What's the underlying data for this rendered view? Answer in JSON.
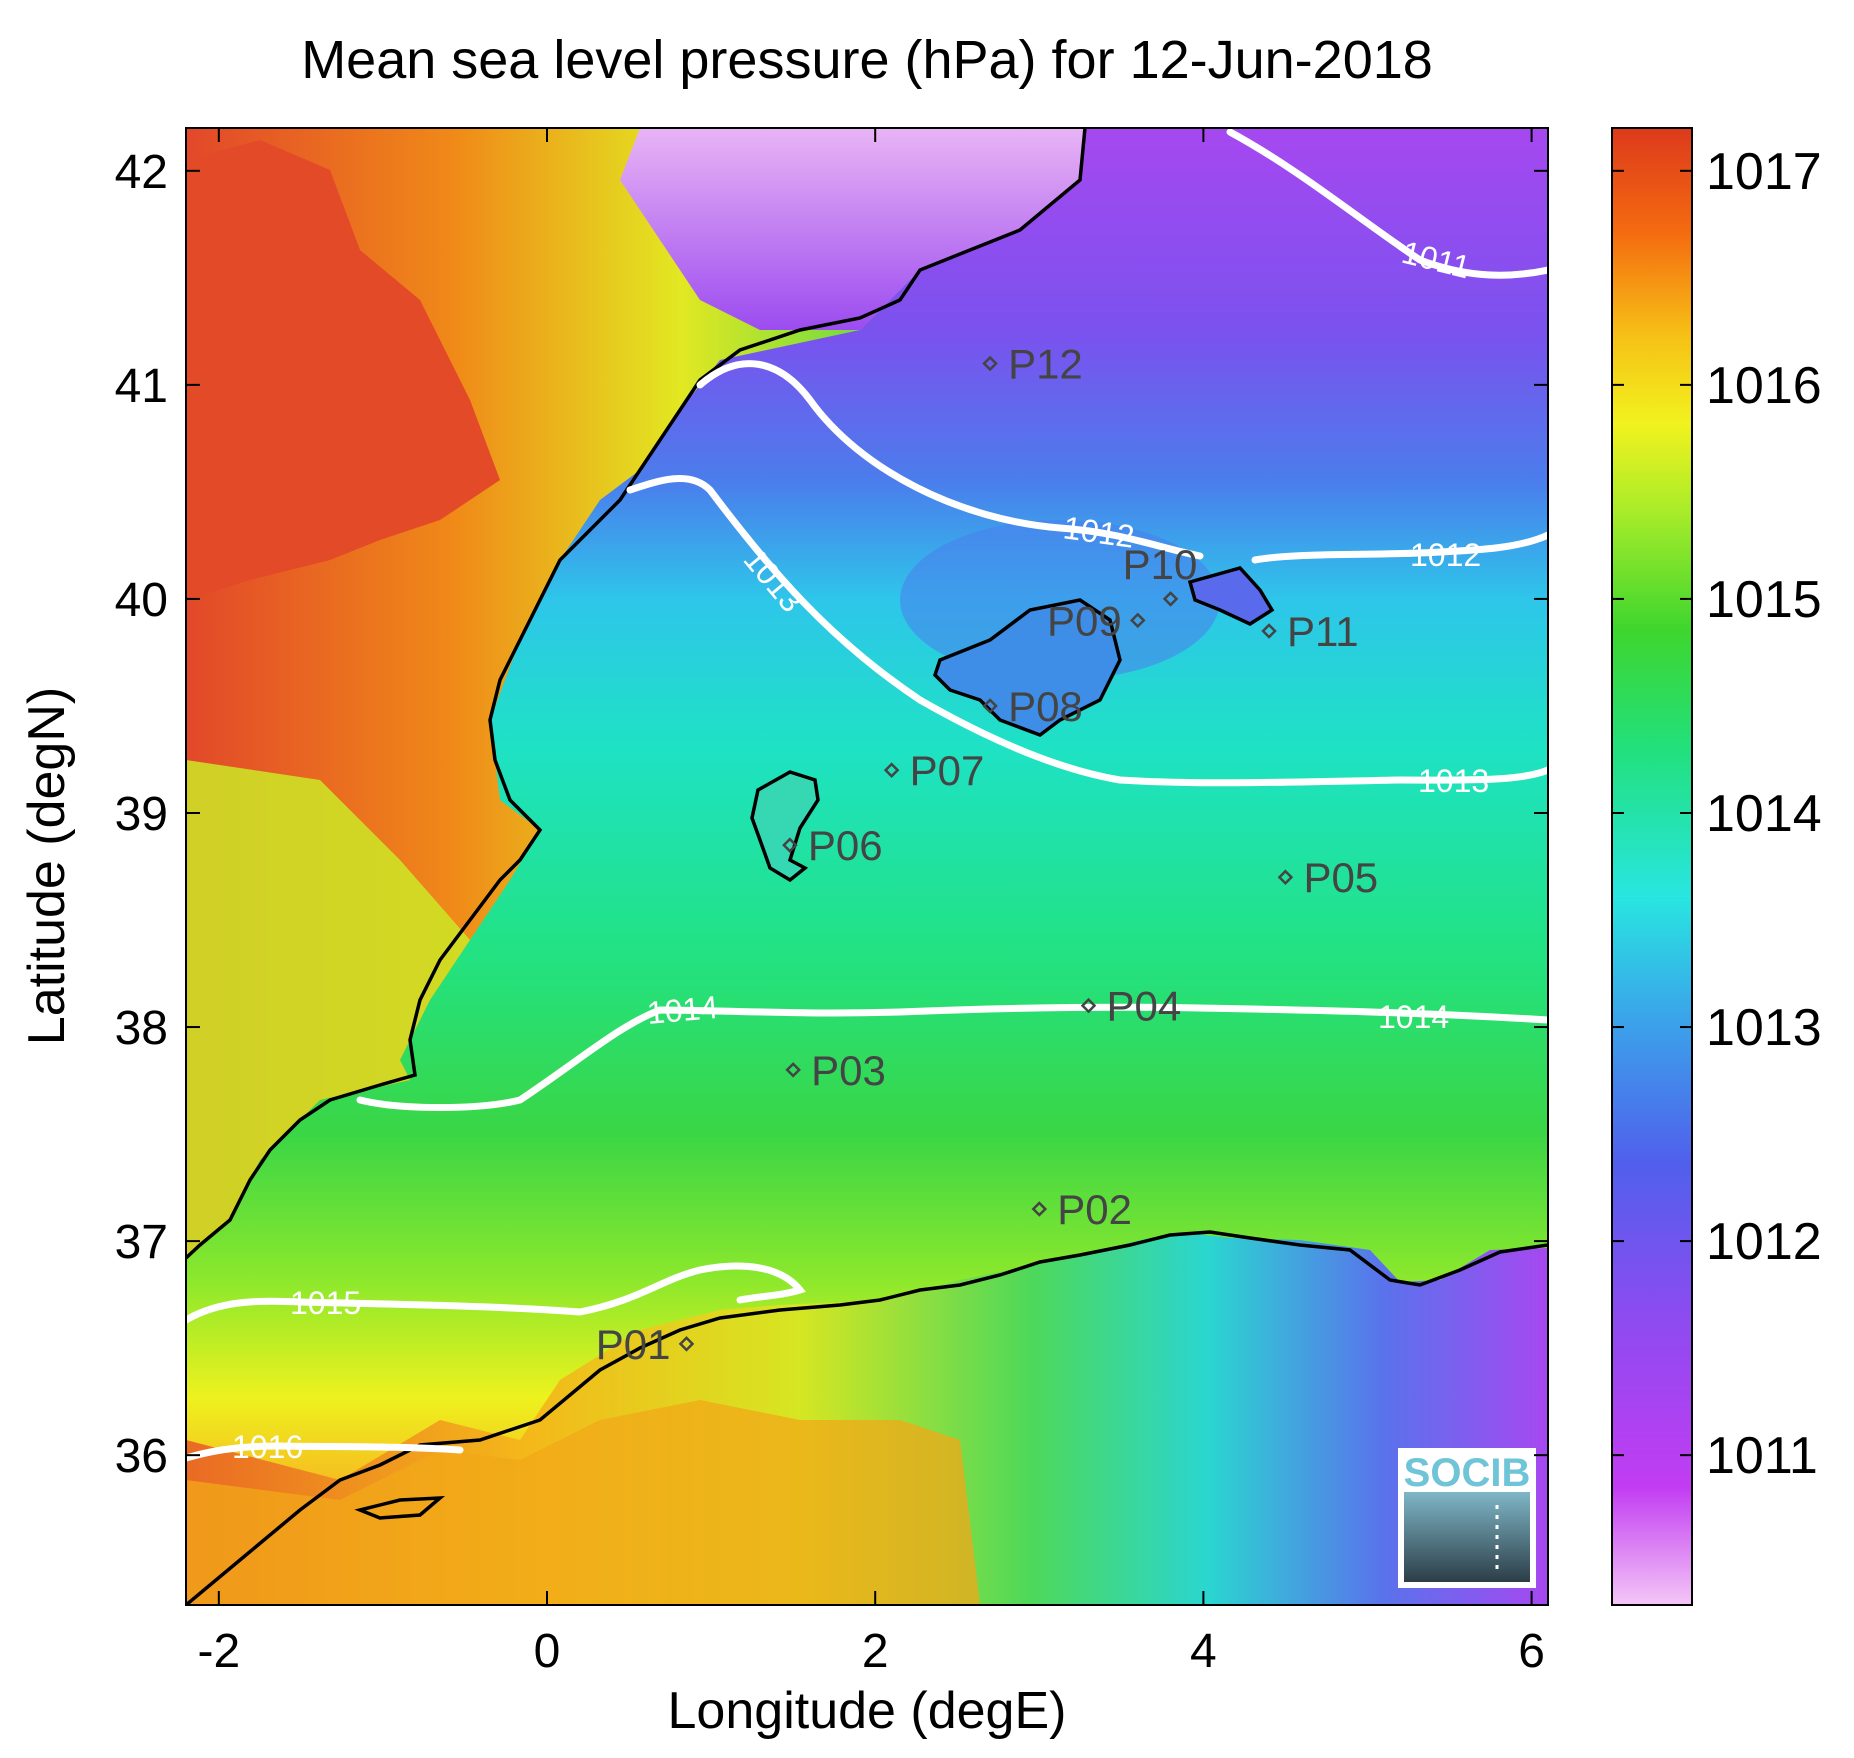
{
  "title": "Mean sea level pressure (hPa) for 12-Jun-2018",
  "x_axis": {
    "label": "Longitude (degE)",
    "range": [
      -2.2,
      6.1
    ],
    "ticks": [
      {
        "value": -2,
        "label": "-2"
      },
      {
        "value": 0,
        "label": "0"
      },
      {
        "value": 2,
        "label": "2"
      },
      {
        "value": 4,
        "label": "4"
      },
      {
        "value": 6,
        "label": "6"
      }
    ]
  },
  "y_axis": {
    "label": "Latitude (degN)",
    "range": [
      35.3,
      42.2
    ],
    "ticks": [
      {
        "value": 36,
        "label": "36"
      },
      {
        "value": 37,
        "label": "37"
      },
      {
        "value": 38,
        "label": "38"
      },
      {
        "value": 39,
        "label": "39"
      },
      {
        "value": 40,
        "label": "40"
      },
      {
        "value": 41,
        "label": "41"
      },
      {
        "value": 42,
        "label": "42"
      }
    ]
  },
  "colorbar": {
    "range": [
      1010.3,
      1017.2
    ],
    "ticks": [
      {
        "value": 1011,
        "label": "1011"
      },
      {
        "value": 1012,
        "label": "1012"
      },
      {
        "value": 1013,
        "label": "1013"
      },
      {
        "value": 1014,
        "label": "1014"
      },
      {
        "value": 1015,
        "label": "1015"
      },
      {
        "value": 1016,
        "label": "1016"
      },
      {
        "value": 1017,
        "label": "1017"
      }
    ]
  },
  "stations": [
    {
      "id": "P01",
      "lon": 0.85,
      "lat": 36.52,
      "side": "left"
    },
    {
      "id": "P02",
      "lon": 3.0,
      "lat": 37.15,
      "side": "right"
    },
    {
      "id": "P03",
      "lon": 1.5,
      "lat": 37.8,
      "side": "right"
    },
    {
      "id": "P04",
      "lon": 3.3,
      "lat": 38.1,
      "side": "right"
    },
    {
      "id": "P05",
      "lon": 4.5,
      "lat": 38.7,
      "side": "right"
    },
    {
      "id": "P06",
      "lon": 1.48,
      "lat": 38.85,
      "side": "right"
    },
    {
      "id": "P07",
      "lon": 2.1,
      "lat": 39.2,
      "side": "right"
    },
    {
      "id": "P08",
      "lon": 2.7,
      "lat": 39.5,
      "side": "right"
    },
    {
      "id": "P09",
      "lon": 3.6,
      "lat": 39.9,
      "side": "left"
    },
    {
      "id": "P10",
      "lon": 3.8,
      "lat": 40.0,
      "side": "upleft"
    },
    {
      "id": "P11",
      "lon": 4.4,
      "lat": 39.85,
      "side": "right"
    },
    {
      "id": "P12",
      "lon": 2.7,
      "lat": 41.1,
      "side": "right"
    }
  ],
  "contours": [
    {
      "value": 1011,
      "label": "1011"
    },
    {
      "value": 1012,
      "label": "1012"
    },
    {
      "value": 1013,
      "label": "1013"
    },
    {
      "value": 1014,
      "label": "1014"
    },
    {
      "value": 1015,
      "label": "1015"
    },
    {
      "value": 1016,
      "label": "1016"
    }
  ],
  "logo": {
    "text": "SOCIB"
  }
}
